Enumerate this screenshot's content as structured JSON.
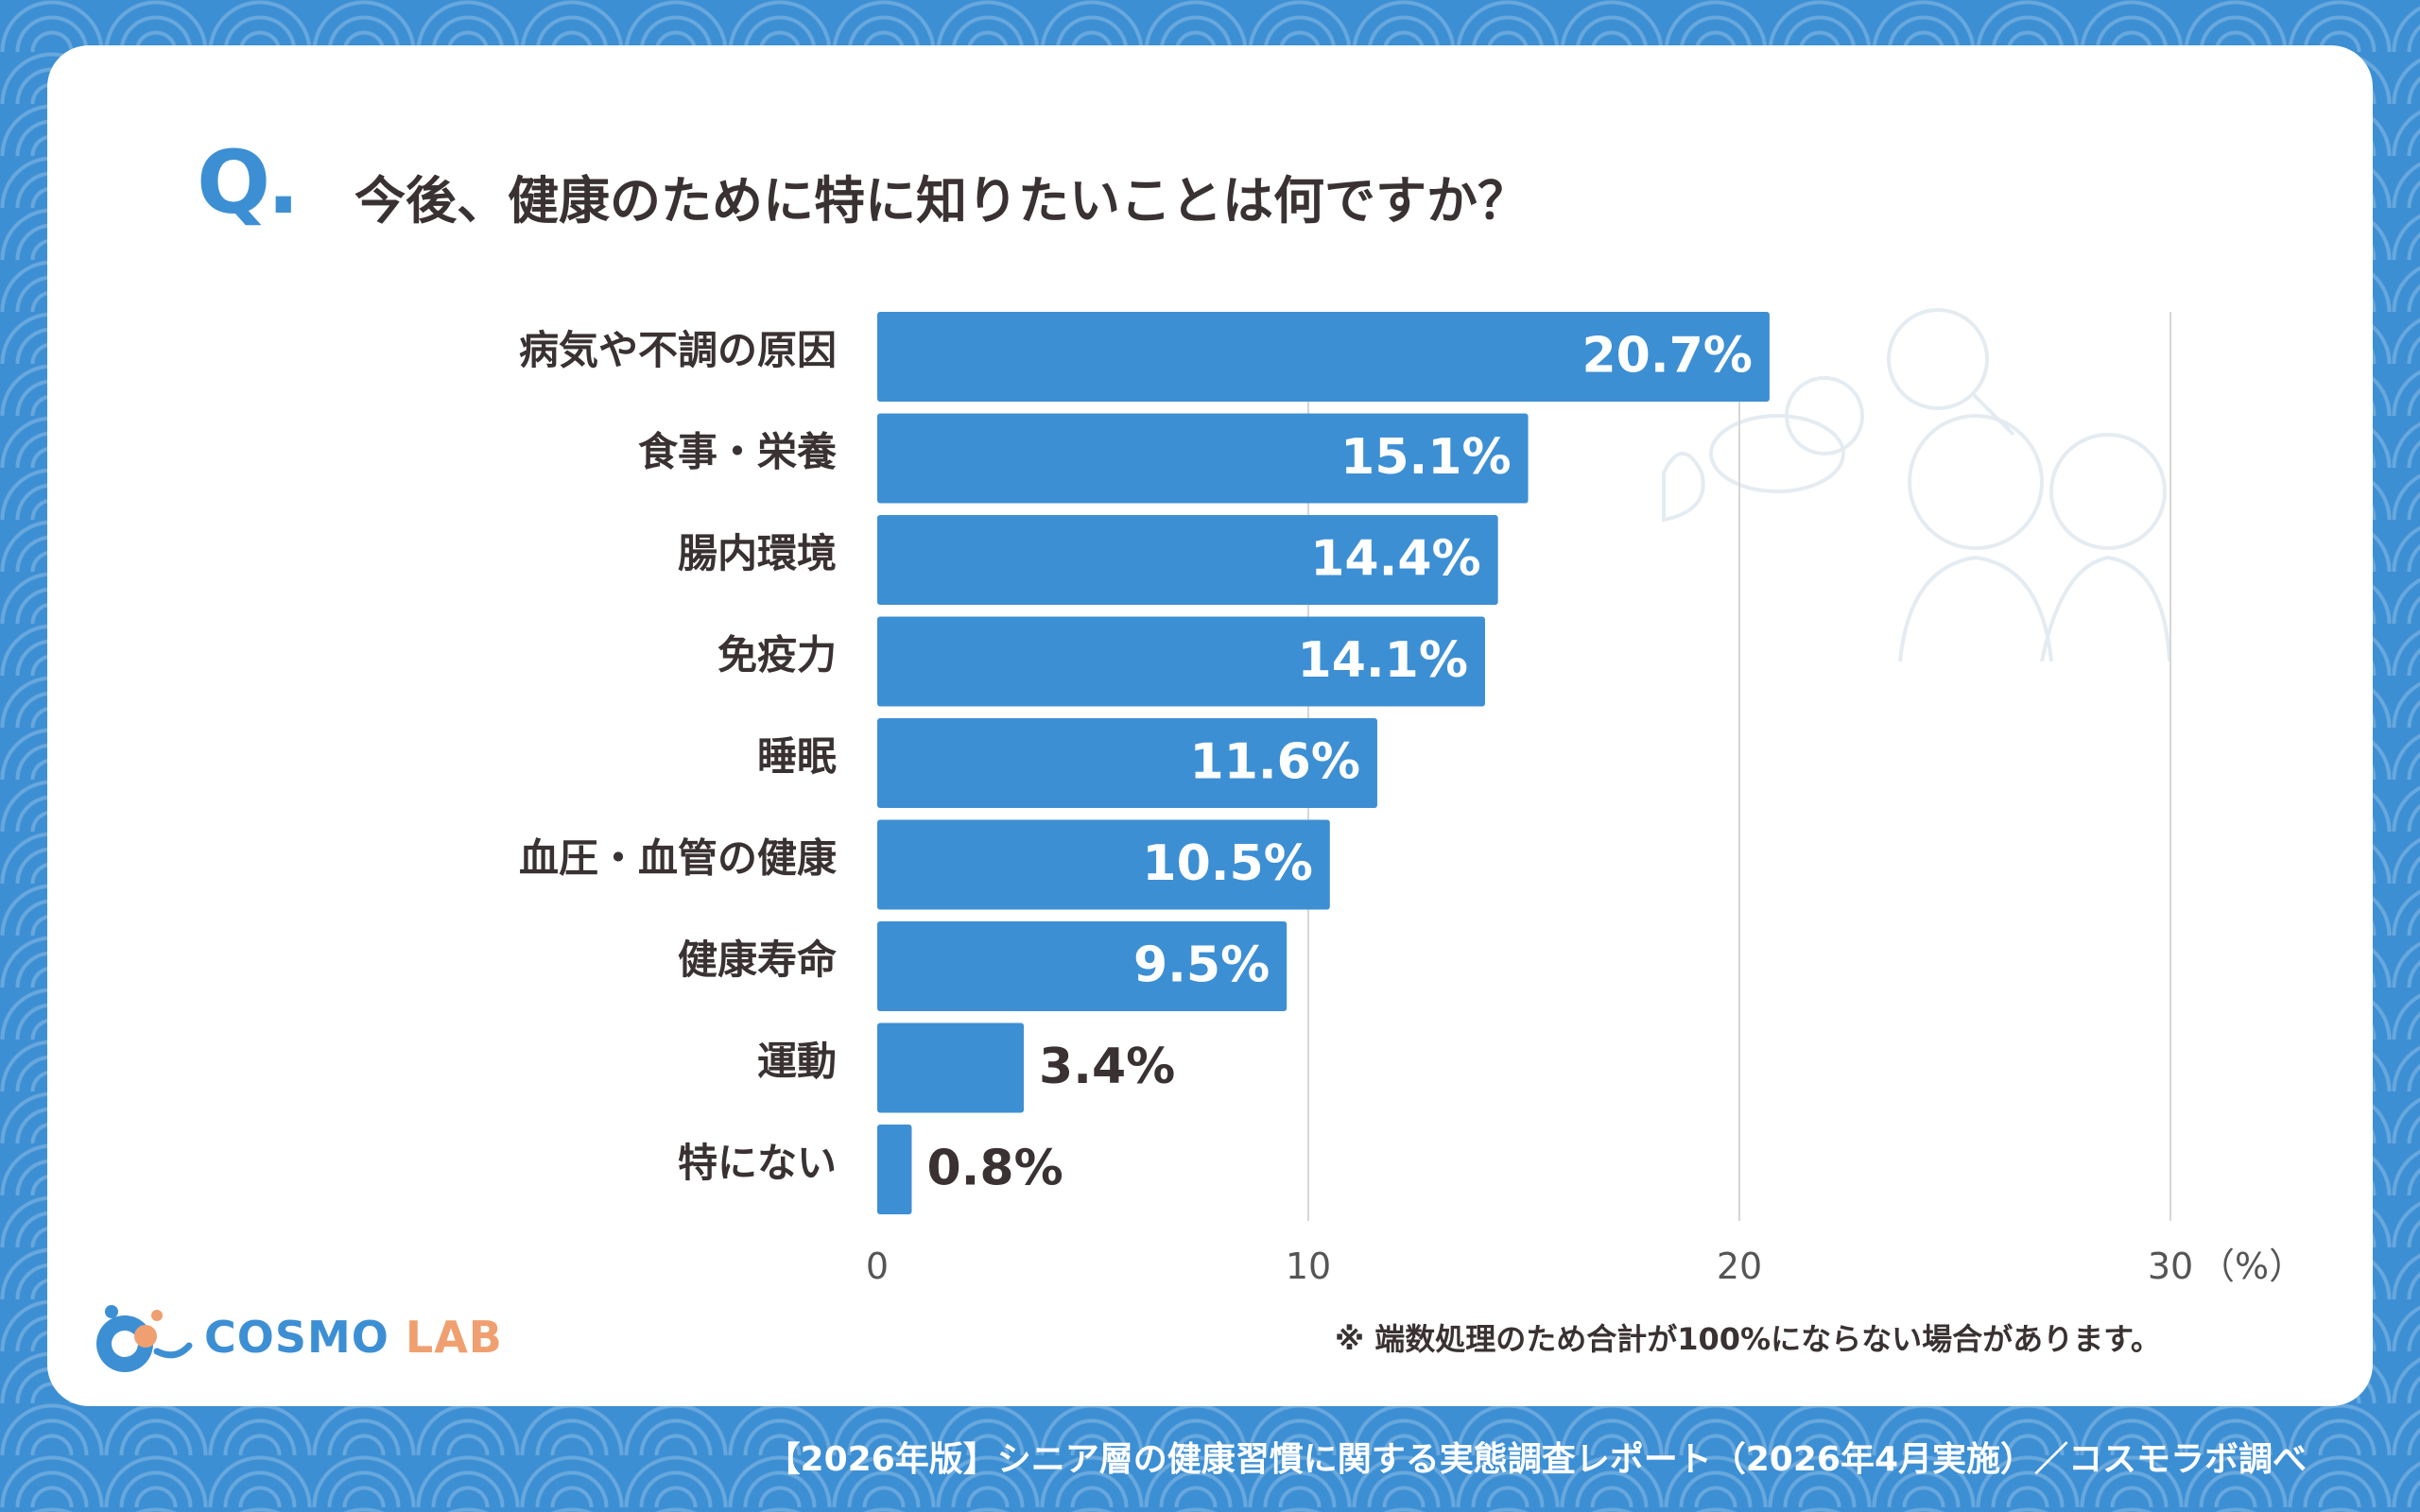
{
  "question": {
    "mark": "Q.",
    "text": "今後、健康のために特に知りたいことは何ですか？"
  },
  "chart_data": {
    "type": "bar",
    "orientation": "horizontal",
    "categories": [
      "病気や不調の原因",
      "食事・栄養",
      "腸内環境",
      "免疫力",
      "睡眠",
      "血圧・血管の健康",
      "健康寿命",
      "運動",
      "特にない"
    ],
    "values": [
      20.7,
      15.1,
      14.4,
      14.1,
      11.6,
      10.5,
      9.5,
      3.4,
      0.8
    ],
    "value_labels": [
      "20.7%",
      "15.1%",
      "14.4%",
      "14.1%",
      "11.6%",
      "10.5%",
      "9.5%",
      "3.4%",
      "0.8%"
    ],
    "xlim": [
      0,
      30
    ],
    "xticks": [
      "0",
      "10",
      "20",
      "30"
    ],
    "unit_label": "（%）",
    "grid": true,
    "bar_color": "#3d8fd4"
  },
  "note": "※ 端数処理のため合計が100%にならない場合があります。",
  "logo": {
    "text_main": "COSMO",
    "text_sub": "LAB",
    "icon": "cosmo-lab-logo-icon"
  },
  "footer": "【2026年版】シニア層の健康習慣に関する実態調査レポート（2026年4月実施）／コスモラボ調べ",
  "colors": {
    "background": "#3d8fd4",
    "card": "#ffffff",
    "text": "#3a3232",
    "accent": "#3d8fd4",
    "logo_sub": "#f0a070"
  }
}
